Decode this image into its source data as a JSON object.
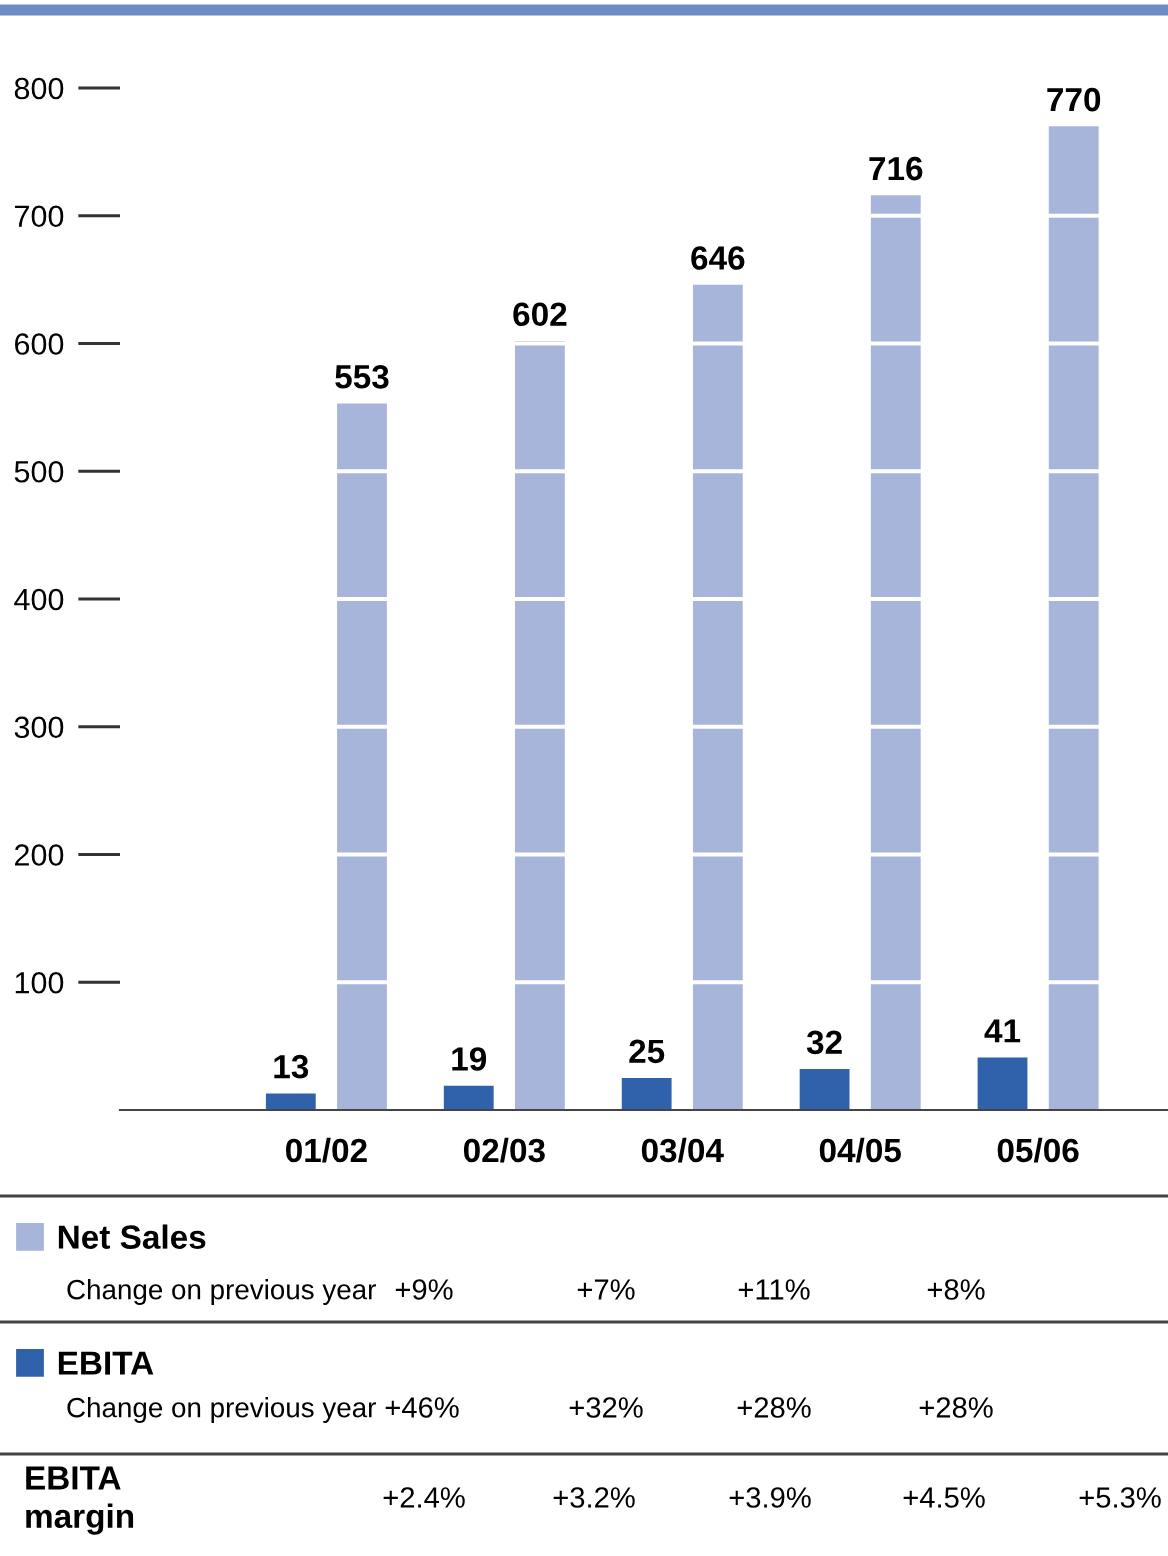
{
  "chart_data": {
    "type": "bar",
    "categories": [
      "01/02",
      "02/03",
      "03/04",
      "04/05",
      "05/06"
    ],
    "series": [
      {
        "name": "Net Sales",
        "color": "#a8b5da",
        "values": [
          553,
          602,
          646,
          716,
          770
        ]
      },
      {
        "name": "EBITA",
        "color": "#2f62aa",
        "values": [
          13,
          19,
          25,
          32,
          41
        ]
      }
    ],
    "ylim": [
      0,
      800
    ],
    "yticks": [
      100,
      200,
      300,
      400,
      500,
      600,
      700,
      800
    ],
    "grid": "y",
    "legend": "bottom",
    "data_labels": true,
    "annotations": [
      "Change on previous year",
      "+9%",
      "+7%",
      "+11%",
      "+8%",
      "Change on previous year",
      "+46%",
      "+32%",
      "+28%",
      "+28%",
      "EBITA margin",
      "+2.4%",
      "+3.2%",
      "+3.9%",
      "+4.5%",
      "+5.3%"
    ]
  }
}
